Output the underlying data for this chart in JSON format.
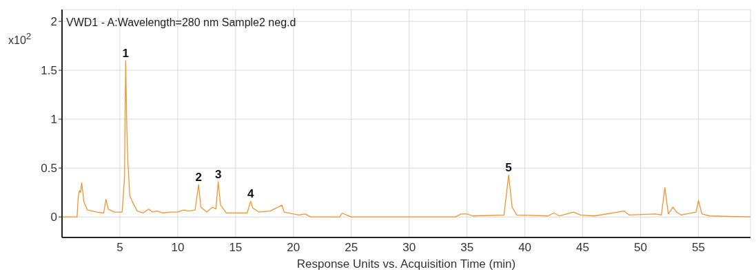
{
  "chart_data": {
    "type": "line",
    "title": "VWD1 - A:Wavelength=280 nm Sample2 neg.d",
    "xlabel": "Response Units vs. Acquisition Time (min)",
    "ylabel": "x10$^{2}$",
    "x": [
      0,
      1.3,
      1.4,
      1.5,
      1.6,
      1.7,
      1.9,
      2.2,
      3,
      3.6,
      3.8,
      4.0,
      4.5,
      5.2,
      5.4,
      5.5,
      5.6,
      5.7,
      5.85,
      6.1,
      6.5,
      7.0,
      7.5,
      7.8,
      8.2,
      8.7,
      9.3,
      10,
      10.5,
      11,
      11.5,
      11.8,
      12.0,
      12.5,
      13.0,
      13.3,
      13.5,
      13.7,
      14.2,
      16,
      16.3,
      16.5,
      17,
      18,
      19,
      19.2,
      20,
      20.5,
      21,
      21.5,
      24,
      24.2,
      24.6,
      25,
      34,
      34.5,
      35,
      35.5,
      38.2,
      38.6,
      38.9,
      39.3,
      42,
      42.5,
      43,
      44.2,
      44.8,
      46,
      48.6,
      49,
      51.3,
      51.8,
      52.1,
      52.4,
      52.8,
      53.1,
      53.5,
      54.8,
      55,
      55.3,
      56,
      59.5
    ],
    "series": [
      {
        "color": "#f7922e",
        "values": [
          0,
          0,
          0.2,
          0.27,
          0.25,
          0.35,
          0.15,
          0.07,
          0.05,
          0.04,
          0.18,
          0.08,
          0.05,
          0.05,
          0.4,
          1.6,
          0.9,
          0.55,
          0.22,
          0.15,
          0.06,
          0.04,
          0.08,
          0.05,
          0.06,
          0.04,
          0.05,
          0.05,
          0.07,
          0.06,
          0.07,
          0.33,
          0.1,
          0.05,
          0.1,
          0.08,
          0.36,
          0.12,
          0.04,
          0.04,
          0.16,
          0.09,
          0.05,
          0.06,
          0.12,
          0.05,
          0.03,
          0.02,
          0.03,
          0,
          0,
          0.04,
          0.02,
          0,
          0,
          0.03,
          0.03,
          0.01,
          0.02,
          0.43,
          0.1,
          0.02,
          0.01,
          0.04,
          0.01,
          0.05,
          0.02,
          0.01,
          0.06,
          0.02,
          0.03,
          0.02,
          0.3,
          0.03,
          0.1,
          0.05,
          0.02,
          0.05,
          0.17,
          0.03,
          0.01,
          0
        ]
      }
    ],
    "annotations": [
      {
        "text": "1",
        "x": 5.5,
        "y": 1.6
      },
      {
        "text": "2",
        "x": 11.8,
        "y": 0.33
      },
      {
        "text": "3",
        "x": 13.5,
        "y": 0.36
      },
      {
        "text": "4",
        "x": 16.3,
        "y": 0.16
      },
      {
        "text": "5",
        "x": 38.6,
        "y": 0.43
      }
    ],
    "xlim": [
      0,
      59.5
    ],
    "ylim": [
      -0.21,
      2.12
    ],
    "xticks": [
      5,
      10,
      15,
      20,
      25,
      30,
      35,
      40,
      45,
      50,
      55
    ],
    "yticks": [
      0,
      0.5,
      1,
      1.5,
      2
    ],
    "grid": true,
    "marker": "none",
    "line_style": "solid"
  }
}
